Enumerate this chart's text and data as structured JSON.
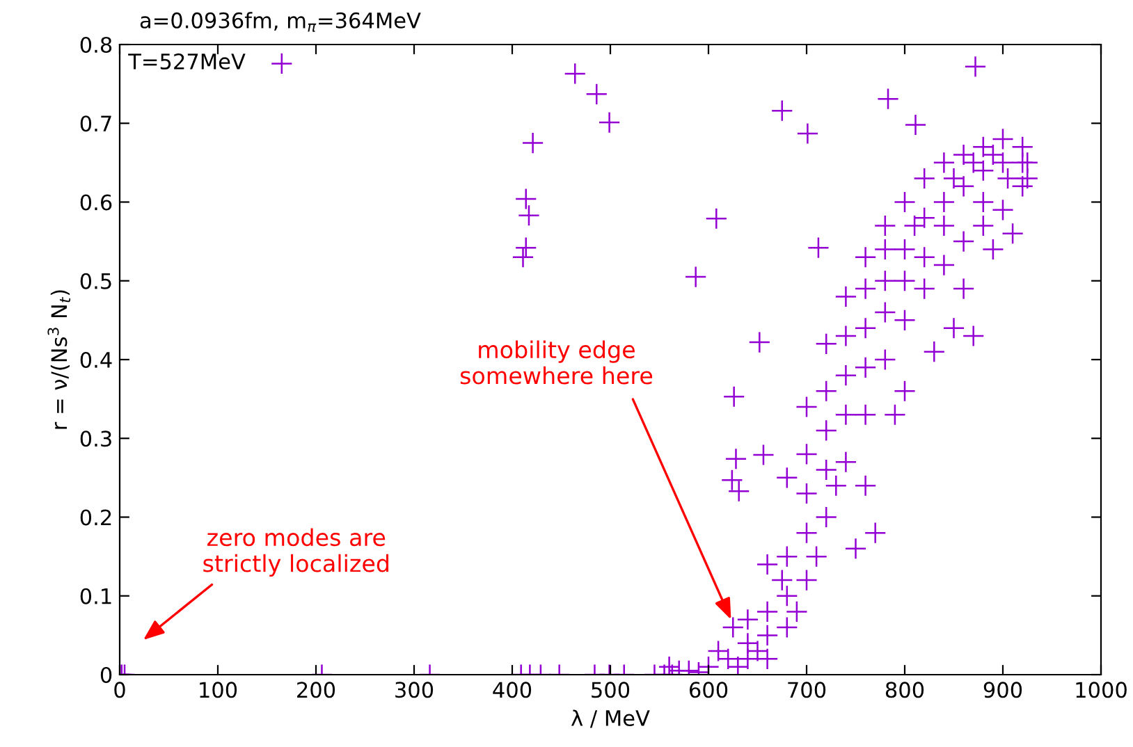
{
  "chart_data": {
    "type": "scatter",
    "title": "a=0.0936fm, m$_{π}$=364MeV",
    "xlabel": "λ / MeV",
    "ylabel": "r = ν/(Ns$^{3}$ N$_{t}$)",
    "xlim": [
      0,
      1000
    ],
    "xticks": [
      0,
      100,
      200,
      300,
      400,
      500,
      600,
      700,
      800,
      900,
      1000
    ],
    "ylim": [
      0,
      0.8
    ],
    "yticks": [
      0,
      0.1,
      0.2,
      0.3,
      0.4,
      0.5,
      0.6,
      0.7,
      0.8
    ],
    "grid": false,
    "legend": "top left",
    "marker": "cross",
    "annotations": [
      {
        "text": "mobility edge\nsomewhere here",
        "x": 623,
        "y": 0.07
      },
      "zero modes are\nstrictly localized"
    ],
    "series": [
      {
        "name": "T=527MeV",
        "color": "#9400d3",
        "x": [
          0,
          2,
          5,
          206,
          316,
          409,
          418,
          429,
          448,
          484,
          499,
          514,
          545,
          555,
          563,
          414,
          417,
          421,
          414,
          411,
          464,
          486,
          499,
          608,
          587,
          626,
          652,
          675,
          701,
          712,
          783,
          811,
          872,
          628,
          656,
          624,
          631,
          580,
          600,
          620,
          640,
          660,
          680,
          700,
          720,
          740,
          760,
          780,
          800,
          820,
          840,
          860,
          880,
          900,
          920,
          640,
          660,
          680,
          700,
          720,
          740,
          760,
          780,
          800,
          820,
          840,
          860,
          880,
          900,
          660,
          680,
          700,
          720,
          740,
          760,
          780,
          800,
          820,
          840,
          860,
          880,
          900,
          920,
          925,
          750,
          770,
          760,
          800,
          790,
          830,
          850,
          870,
          860,
          890,
          910,
          925,
          920,
          560,
          570,
          590,
          610,
          625,
          630,
          650,
          690,
          710,
          730,
          675,
          700,
          720,
          740,
          760,
          780,
          810,
          850,
          870,
          890,
          905,
          880,
          840,
          820,
          800,
          780,
          760,
          740,
          720,
          700,
          680,
          660,
          640
        ],
        "values": [
          0,
          0,
          0,
          0,
          0,
          0,
          0,
          0,
          0,
          0,
          0,
          0,
          0,
          0,
          0,
          0.604,
          0.583,
          0.675,
          0.542,
          0.53,
          0.763,
          0.737,
          0.701,
          0.579,
          0.505,
          0.353,
          0.422,
          0.716,
          0.687,
          0.542,
          0.731,
          0.698,
          0.772,
          0.274,
          0.279,
          0.247,
          0.233,
          0.005,
          0.01,
          0.02,
          0.04,
          0.08,
          0.15,
          0.23,
          0.31,
          0.38,
          0.44,
          0.5,
          0.54,
          0.58,
          0.6,
          0.62,
          0.64,
          0.65,
          0.65,
          0.07,
          0.14,
          0.25,
          0.34,
          0.42,
          0.48,
          0.53,
          0.57,
          0.6,
          0.63,
          0.65,
          0.66,
          0.67,
          0.68,
          0.02,
          0.06,
          0.12,
          0.2,
          0.27,
          0.33,
          0.4,
          0.45,
          0.49,
          0.52,
          0.55,
          0.57,
          0.59,
          0.62,
          0.65,
          0.16,
          0.18,
          0.24,
          0.36,
          0.33,
          0.41,
          0.44,
          0.43,
          0.49,
          0.54,
          0.56,
          0.63,
          0.67,
          0.01,
          0.005,
          0.003,
          0.03,
          0.06,
          0.01,
          0.03,
          0.08,
          0.15,
          0.24,
          0.12,
          0.28,
          0.36,
          0.43,
          0.49,
          0.54,
          0.57,
          0.63,
          0.65,
          0.66,
          0.63,
          0.6,
          0.57,
          0.53,
          0.5,
          0.46,
          0.39,
          0.33,
          0.26,
          0.18,
          0.1,
          0.05,
          0.02
        ]
      }
    ]
  }
}
